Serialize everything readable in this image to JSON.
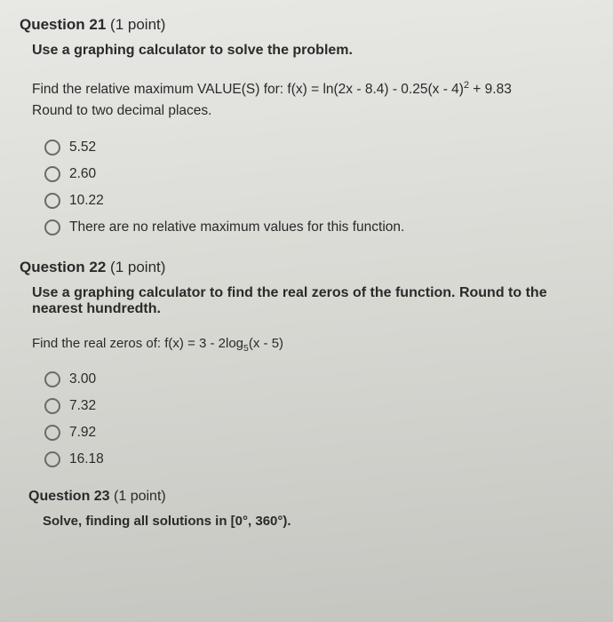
{
  "q21": {
    "number": "Question 21",
    "points": "(1 point)",
    "instruction": "Use a graphing calculator to solve the problem.",
    "line1": "Find the relative maximum VALUE(S) for: f(x) = ln(2x - 8.4) - 0.25(x - 4)",
    "exp1": "2",
    "line1b": " + 9.83",
    "line2": "Round to two decimal places.",
    "options": [
      "5.52",
      "2.60",
      "10.22",
      "There are no relative maximum values for this function."
    ]
  },
  "q22": {
    "number": "Question 22",
    "points": "(1 point)",
    "instruction": "Use a graphing calculator to find the real zeros of the function. Round to the nearest hundredth.",
    "line1a": "Find the real zeros of: f(x) = 3 - 2log",
    "sub1": "5",
    "line1b": "(x - 5)",
    "options": [
      "3.00",
      "7.32",
      "7.92",
      "16.18"
    ]
  },
  "q23": {
    "number": "Question 23",
    "points": "(1 point)",
    "instruction": "Solve, finding all solutions in [0°, 360°)."
  }
}
